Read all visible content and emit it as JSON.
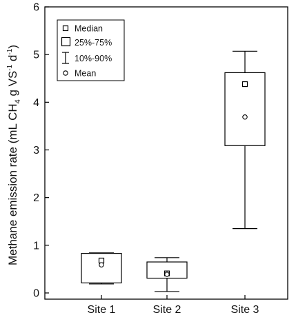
{
  "chart_data": {
    "type": "box",
    "ylabel": {
      "main": "Methane emission rate (mL CH",
      "sub4": "4",
      "mid": " g VS",
      "sup1": "-1",
      "space": " d",
      "sup2": "-1",
      "end": ")"
    },
    "ylim": [
      0,
      6
    ],
    "yticks": [
      "0",
      "1",
      "2",
      "3",
      "4",
      "5",
      "6"
    ],
    "categories": [
      "Site 1",
      "Site 2",
      "Site 3"
    ],
    "boxes": [
      {
        "category": "Site 1",
        "whisker_low": 0.19,
        "q1": 0.21,
        "median": 0.68,
        "q3": 0.83,
        "whisker_high": 0.84,
        "mean": 0.59
      },
      {
        "category": "Site 2",
        "whisker_low": 0.03,
        "q1": 0.31,
        "median": 0.41,
        "q3": 0.65,
        "whisker_high": 0.74,
        "mean": 0.39
      },
      {
        "category": "Site 3",
        "whisker_low": 1.35,
        "q1": 3.09,
        "median": 4.38,
        "q3": 4.62,
        "whisker_high": 5.07,
        "mean": 3.69
      }
    ],
    "legend": {
      "position": "top-left",
      "items": [
        "Median",
        "25%-75%",
        "10%-90%",
        "Mean"
      ]
    },
    "grid": false
  }
}
